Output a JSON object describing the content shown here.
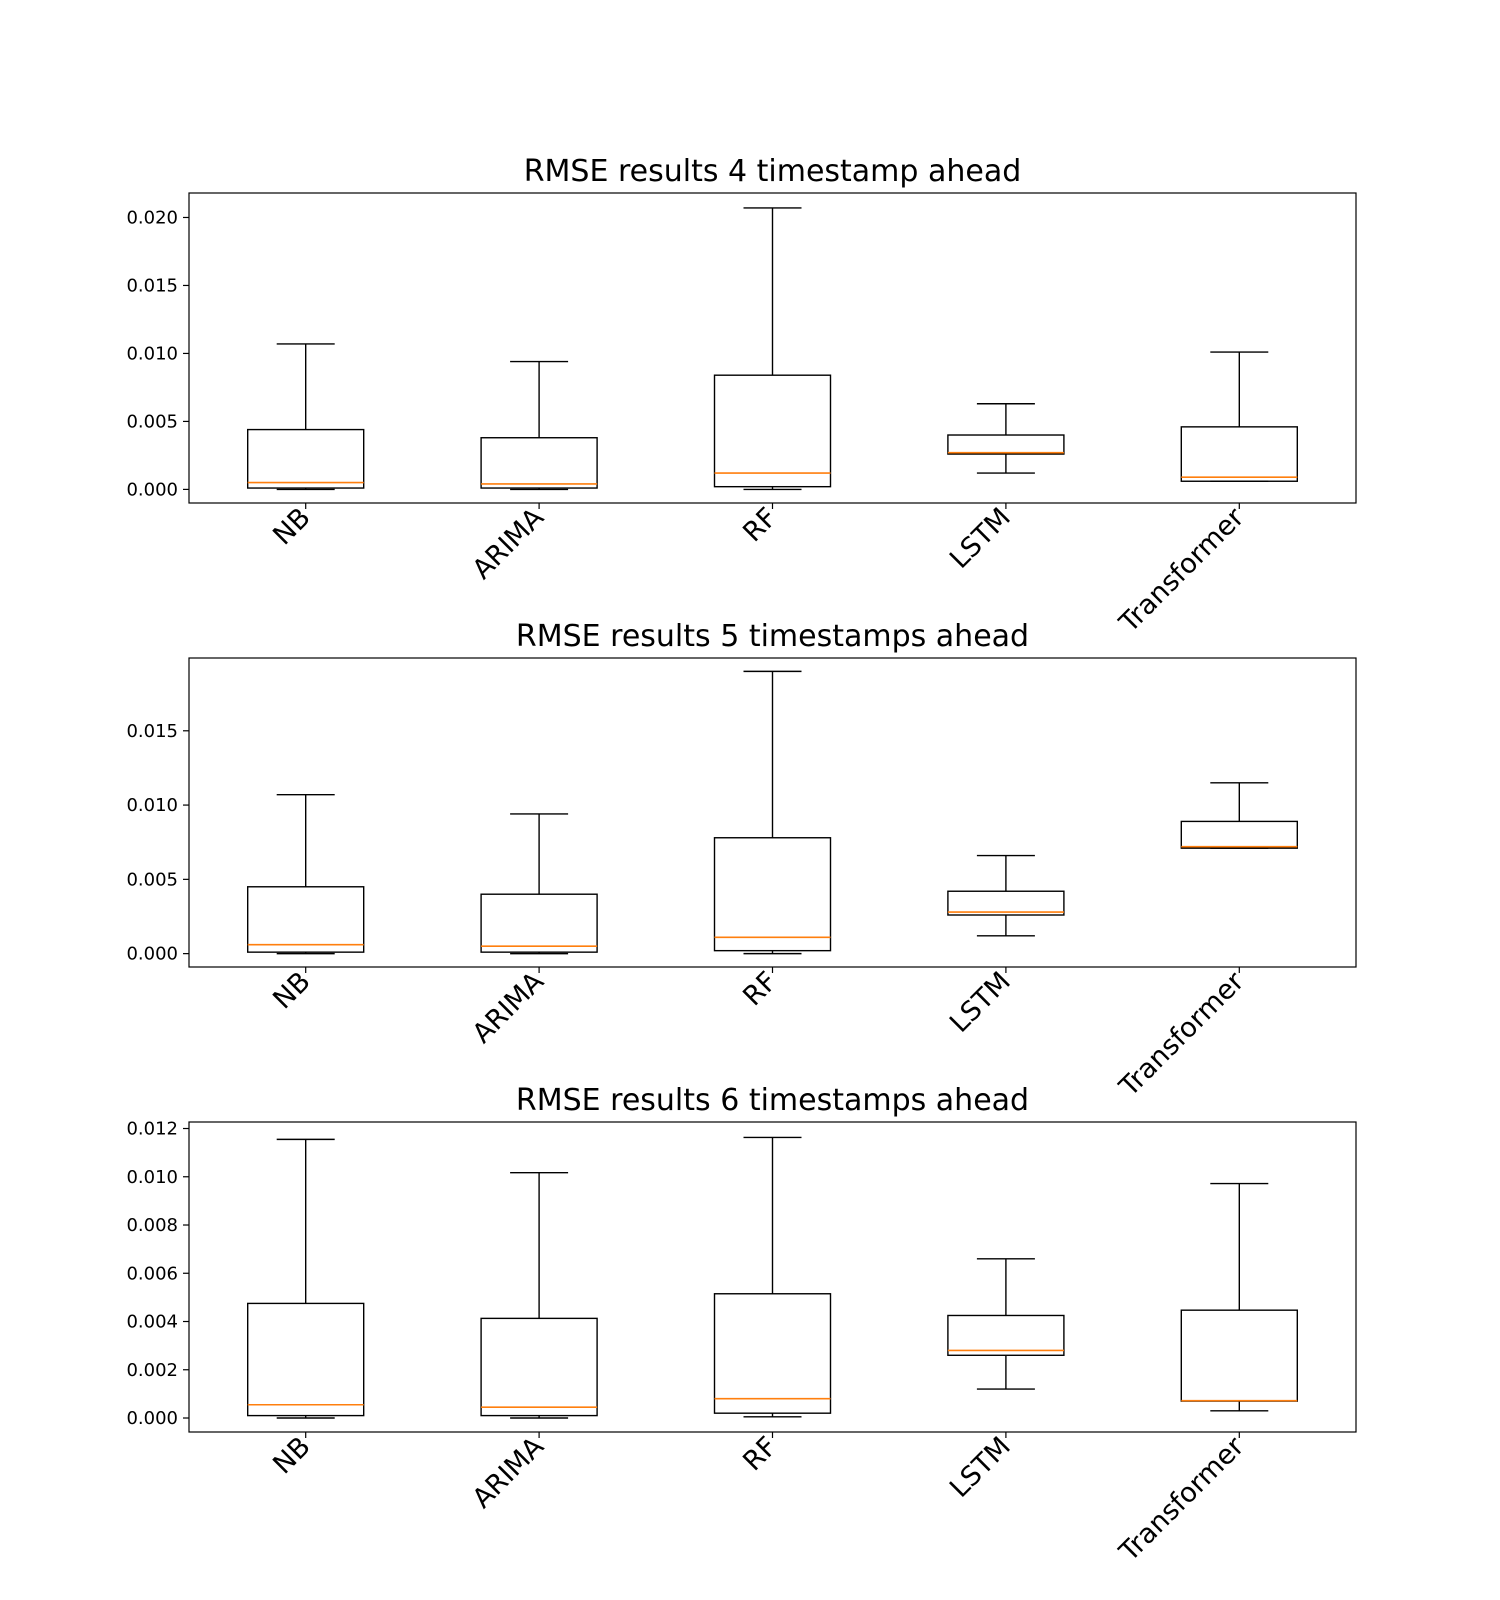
{
  "colors": {
    "box": "#000000",
    "median": "#ff7f0e",
    "background": "#ffffff"
  },
  "chart_data": [
    {
      "type": "box",
      "title": "RMSE results 4 timestamp ahead",
      "xlabel": "",
      "ylabel": "",
      "categories": [
        "NB",
        "ARIMA",
        "RF",
        "LSTM",
        "Transformer"
      ],
      "yticks": [
        0.0,
        0.005,
        0.01,
        0.015,
        0.02
      ],
      "ytick_labels": [
        "0.000",
        "0.005",
        "0.010",
        "0.015",
        "0.020"
      ],
      "ylim": [
        -0.001,
        0.0218
      ],
      "boxes": [
        {
          "whislo": 0.0,
          "q1": 0.0001,
          "med": 0.0005,
          "q3": 0.0044,
          "whishi": 0.0107
        },
        {
          "whislo": 0.0,
          "q1": 0.0001,
          "med": 0.0004,
          "q3": 0.0038,
          "whishi": 0.0094
        },
        {
          "whislo": 0.0,
          "q1": 0.0002,
          "med": 0.0012,
          "q3": 0.0084,
          "whishi": 0.0207
        },
        {
          "whislo": 0.0012,
          "q1": 0.0026,
          "med": 0.0027,
          "q3": 0.004,
          "whishi": 0.0063
        },
        {
          "whislo": 0.0006,
          "q1": 0.0006,
          "med": 0.0009,
          "q3": 0.0046,
          "whishi": 0.0101
        }
      ],
      "grid": false,
      "legend": "none"
    },
    {
      "type": "box",
      "title": "RMSE results 5 timestamps ahead",
      "xlabel": "",
      "ylabel": "",
      "categories": [
        "NB",
        "ARIMA",
        "RF",
        "LSTM",
        "Transformer"
      ],
      "yticks": [
        0.0,
        0.005,
        0.01,
        0.015
      ],
      "ytick_labels": [
        "0.000",
        "0.005",
        "0.010",
        "0.015"
      ],
      "ylim": [
        -0.0009,
        0.0199
      ],
      "boxes": [
        {
          "whislo": 0.0,
          "q1": 0.0001,
          "med": 0.0006,
          "q3": 0.0045,
          "whishi": 0.0107
        },
        {
          "whislo": 0.0,
          "q1": 0.0001,
          "med": 0.0005,
          "q3": 0.004,
          "whishi": 0.0094
        },
        {
          "whislo": 0.0,
          "q1": 0.0002,
          "med": 0.0011,
          "q3": 0.0078,
          "whishi": 0.019
        },
        {
          "whislo": 0.0012,
          "q1": 0.0026,
          "med": 0.0028,
          "q3": 0.0042,
          "whishi": 0.0066
        },
        {
          "whislo": 0.0071,
          "q1": 0.0071,
          "med": 0.0072,
          "q3": 0.0089,
          "whishi": 0.0115
        }
      ],
      "grid": false,
      "legend": "none"
    },
    {
      "type": "box",
      "title": "RMSE results 6 timestamps ahead",
      "xlabel": "",
      "ylabel": "",
      "categories": [
        "NB",
        "ARIMA",
        "RF",
        "LSTM",
        "Transformer"
      ],
      "yticks": [
        0.0,
        0.002,
        0.004,
        0.006,
        0.008,
        0.01,
        0.012
      ],
      "ytick_labels": [
        "0.000",
        "0.002",
        "0.004",
        "0.006",
        "0.008",
        "0.010",
        "0.012"
      ],
      "ylim": [
        -0.00058,
        0.01227
      ],
      "boxes": [
        {
          "whislo": 0.0,
          "q1": 0.0001,
          "med": 0.00055,
          "q3": 0.00475,
          "whishi": 0.01155
        },
        {
          "whislo": 0.0,
          "q1": 0.0001,
          "med": 0.00045,
          "q3": 0.00413,
          "whishi": 0.01017
        },
        {
          "whislo": 5e-05,
          "q1": 0.0002,
          "med": 0.0008,
          "q3": 0.00515,
          "whishi": 0.01163
        },
        {
          "whislo": 0.0012,
          "q1": 0.0026,
          "med": 0.0028,
          "q3": 0.00425,
          "whishi": 0.0066
        },
        {
          "whislo": 0.0003,
          "q1": 0.0007,
          "med": 0.00072,
          "q3": 0.00447,
          "whishi": 0.00972
        }
      ],
      "grid": false,
      "legend": "none"
    }
  ]
}
